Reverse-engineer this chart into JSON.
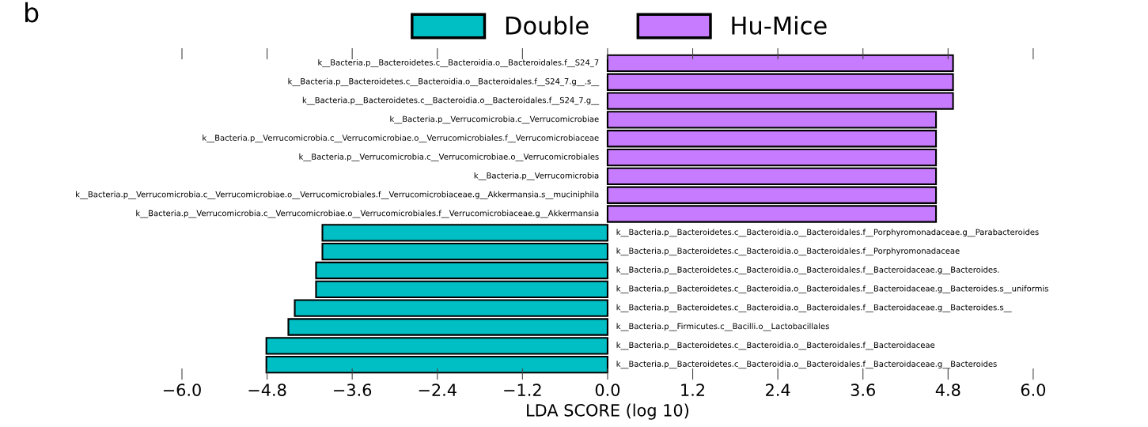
{
  "chart_data": {
    "type": "bar",
    "orientation": "horizontal",
    "xlabel": "LDA SCORE (log 10)",
    "annotations": [
      "b"
    ],
    "categories": [
      "k__Bacteria.p__Bacteroidetes.c__Bacteroidia.o__Bacteroidales.f__S24_7",
      "k__Bacteria.p__Bacteroidetes.c__Bacteroidia.o__Bacteroidales.f__S24_7.g__.s__",
      "k__Bacteria.p__Bacteroidetes.c__Bacteroidia.o__Bacteroidales.f__S24_7.g__",
      "k__Bacteria.p__Verrucomicrobia.c__Verrucomicrobiae",
      "k__Bacteria.p__Verrucomicrobia.c__Verrucomicrobiae.o__Verrucomicrobiales.f__Verrucomicrobiaceae",
      "k__Bacteria.p__Verrucomicrobia.c__Verrucomicrobiae.o__Verrucomicrobiales",
      "k__Bacteria.p__Verrucomicrobia",
      "k__Bacteria.p__Verrucomicrobia.c__Verrucomicrobiae.o__Verrucomicrobiales.f__Verrucomicrobiaceae.g__Akkermansia.s__muciniphila",
      "k__Bacteria.p__Verrucomicrobia.c__Verrucomicrobiae.o__Verrucomicrobiales.f__Verrucomicrobiaceae.g__Akkermansia",
      "k__Bacteria.p__Bacteroidetes.c__Bacteroidia.o__Bacteroidales.f__Porphyromonadaceae.g__Parabacteroides",
      "k__Bacteria.p__Bacteroidetes.c__Bacteroidia.o__Bacteroidales.f__Porphyromonadaceae",
      "k__Bacteria.p__Bacteroidetes.c__Bacteroidia.o__Bacteroidales.f__Bacteroidaceae.g__Bacteroides.",
      "k__Bacteria.p__Bacteroidetes.c__Bacteroidia.o__Bacteroidales.f__Bacteroidaceae.g__Bacteroides.s__uniformis",
      "k__Bacteria.p__Bacteroidetes.c__Bacteroidia.o__Bacteroidales.f__Bacteroidaceae.g__Bacteroides.s__",
      "k__Bacteria.p__Firmicutes.c__Bacilli.o__Lactobacillales",
      "k__Bacteria.p__Bacteroidetes.c__Bacteroidia.o__Bacteroidales.f__Bacteroidaceae",
      "k__Bacteria.p__Bacteroidetes.c__Bacteroidia.o__Bacteroidales.f__Bacteroidaceae.g__Bacteroides"
    ],
    "series": [
      {
        "name": "Double",
        "color": "#00bfc4",
        "values": [
          null,
          null,
          null,
          null,
          null,
          null,
          null,
          null,
          null,
          -4.02,
          -4.02,
          -4.11,
          -4.11,
          -4.41,
          -4.5,
          -4.81,
          -4.81
        ]
      },
      {
        "name": "Hu-Mice",
        "color": "#c77cff",
        "values": [
          4.87,
          4.87,
          4.87,
          4.63,
          4.63,
          4.63,
          4.63,
          4.63,
          4.63,
          null,
          null,
          null,
          null,
          null,
          null,
          null,
          null
        ]
      }
    ],
    "xlim": [
      -6.0,
      6.0
    ],
    "xticks": [
      {
        "value": -6,
        "label": "−6.0"
      },
      {
        "value": -4.8,
        "label": "−4.8"
      },
      {
        "value": -3.6,
        "label": "−3.6"
      },
      {
        "value": -2.4,
        "label": "−2.4"
      },
      {
        "value": -1.2,
        "label": "−1.2"
      },
      {
        "value": 0,
        "label": "0.0"
      },
      {
        "value": 1.2,
        "label": "1.2"
      },
      {
        "value": 2.4,
        "label": "2.4"
      },
      {
        "value": 3.6,
        "label": "3.6"
      },
      {
        "value": 4.8,
        "label": "4.8"
      },
      {
        "value": 6,
        "label": "6.0"
      }
    ],
    "grid": false,
    "legend": "top"
  }
}
